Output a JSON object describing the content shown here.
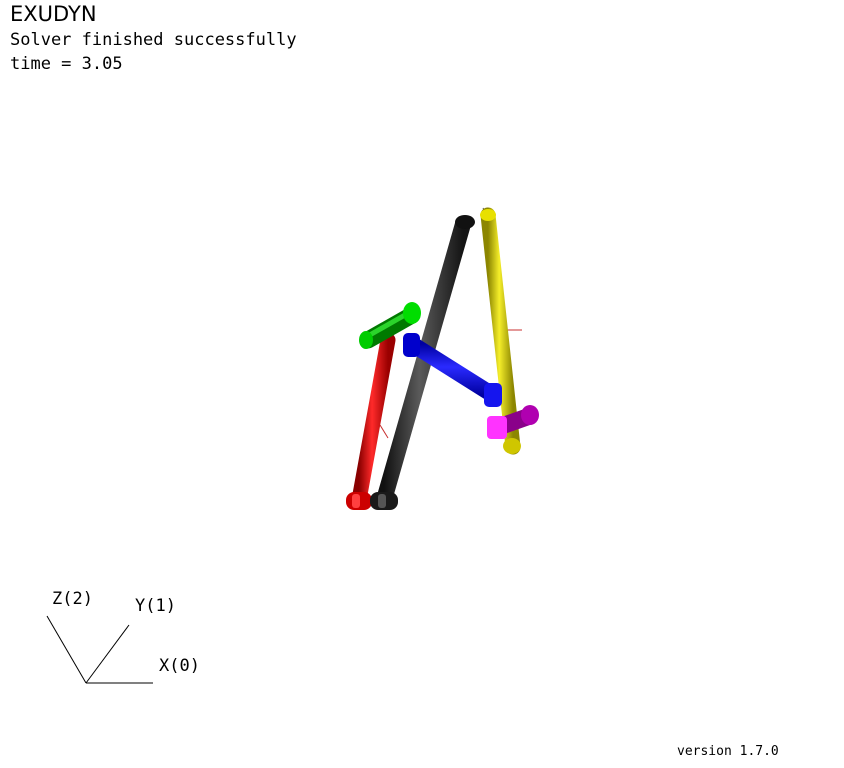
{
  "app": {
    "title": "EXUDYN",
    "status": "Solver finished successfully",
    "time_text": "time = 3.05",
    "version_text": "version 1.7.0"
  },
  "axes": {
    "z_label": "Z(2)",
    "y_label": "Y(1)",
    "x_label": "X(0)"
  },
  "colors": {
    "red_link": "#e00000",
    "black_link": "#2b2b2b",
    "yellow_link": "#d8d000",
    "green_link": "#00b000",
    "blue_link": "#0000e0",
    "magenta_link": "#e000e0",
    "marker": "#d03030"
  }
}
